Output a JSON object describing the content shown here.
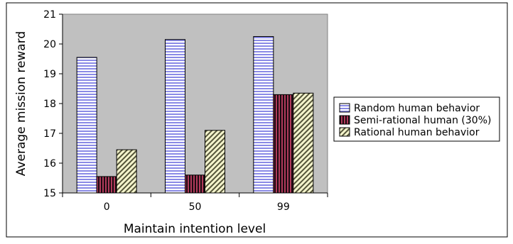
{
  "chart_data": {
    "type": "bar",
    "title": "",
    "xlabel": "Maintain intention level",
    "ylabel": "Average mission reward",
    "categories": [
      "0",
      "50",
      "99"
    ],
    "ylim": [
      15,
      21
    ],
    "yticks": [
      15,
      16,
      17,
      18,
      19,
      20,
      21
    ],
    "grid": false,
    "legend_position": "right",
    "plot_background": "#c0c0c0",
    "series": [
      {
        "name": "Random human behavior",
        "values": [
          19.55,
          20.15,
          20.25
        ],
        "color": "#8a8ae6",
        "pattern": "horizontal-stripes"
      },
      {
        "name": "Semi-rational human (30%)",
        "values": [
          15.55,
          15.6,
          18.3
        ],
        "color": "#b03a5b",
        "pattern": "vertical-stripes"
      },
      {
        "name": "Rational human behavior",
        "values": [
          16.45,
          17.1,
          18.35
        ],
        "color": "#e8e8a8",
        "pattern": "diagonal-stripes"
      }
    ]
  }
}
